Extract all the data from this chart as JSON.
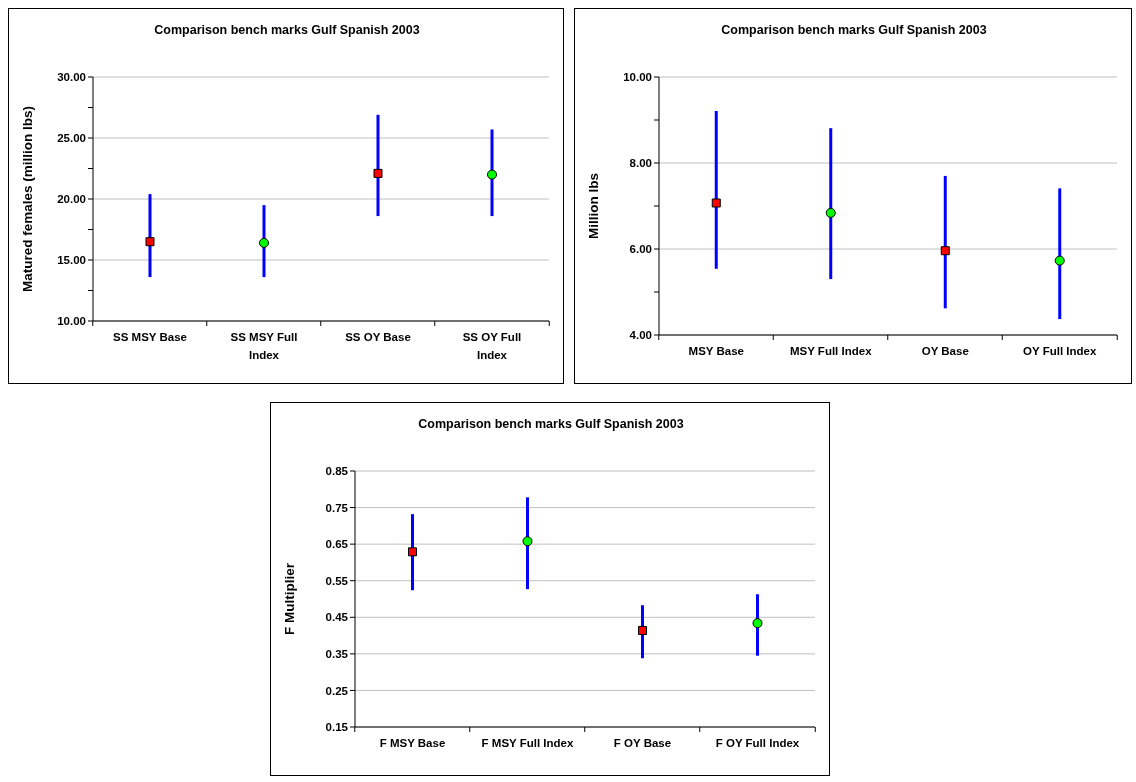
{
  "chart_data": [
    {
      "type": "scatter",
      "title": "Comparison bench marks Gulf Spanish 2003",
      "ylabel": "Matured females (million lbs)",
      "categories": [
        "SS MSY Base",
        "SS MSY Full Index",
        "SS OY Base",
        "SS OY Full Index"
      ],
      "ylim": [
        10,
        30
      ],
      "yticks": [
        {
          "value": 10,
          "label": "10.00"
        },
        {
          "value": 12.5,
          "label": null
        },
        {
          "value": 15,
          "label": "15.00"
        },
        {
          "value": 17.5,
          "label": null
        },
        {
          "value": 20,
          "label": "20.00"
        },
        {
          "value": 22.5,
          "label": null
        },
        {
          "value": 25,
          "label": "25.00"
        },
        {
          "value": 27.5,
          "label": null
        },
        {
          "value": 30,
          "label": "30.00"
        }
      ],
      "grid": "y",
      "series": [
        {
          "color": "#ff0000",
          "marker": "square",
          "values": [
            16.5,
            null,
            22.1,
            null
          ],
          "errors": [
            [
              13.6,
              20.4
            ],
            null,
            [
              18.6,
              26.9
            ],
            null
          ]
        },
        {
          "color": "#00ff00",
          "marker": "circle",
          "values": [
            null,
            16.4,
            null,
            22.0
          ],
          "errors": [
            null,
            [
              13.6,
              19.5
            ],
            null,
            [
              18.6,
              25.7
            ]
          ]
        }
      ]
    },
    {
      "type": "scatter",
      "title": "Comparison bench marks Gulf Spanish 2003",
      "ylabel": "Million lbs",
      "categories": [
        "MSY Base",
        "MSY Full Index",
        "OY Base",
        "OY Full Index"
      ],
      "ylim": [
        4,
        10
      ],
      "yticks": [
        {
          "value": 4,
          "label": "4.00"
        },
        {
          "value": 5,
          "label": null
        },
        {
          "value": 6,
          "label": "6.00"
        },
        {
          "value": 7,
          "label": null
        },
        {
          "value": 8,
          "label": "8.00"
        },
        {
          "value": 9,
          "label": null
        },
        {
          "value": 10,
          "label": "10.00"
        }
      ],
      "grid": "y",
      "series": [
        {
          "color": "#ff0000",
          "marker": "square",
          "values": [
            7.07,
            null,
            5.96,
            null
          ],
          "errors": [
            [
              5.54,
              9.21
            ],
            null,
            [
              4.62,
              7.7
            ],
            null
          ]
        },
        {
          "color": "#00ff00",
          "marker": "circle",
          "values": [
            null,
            6.84,
            null,
            5.73
          ],
          "errors": [
            null,
            [
              5.3,
              8.81
            ],
            null,
            [
              4.37,
              7.41
            ]
          ]
        }
      ]
    },
    {
      "type": "scatter",
      "title": "Comparison bench marks Gulf Spanish 2003",
      "ylabel": "F Multiplier",
      "categories": [
        "F MSY Base",
        "F MSY Full Index",
        "F OY Base",
        "F OY Full Index"
      ],
      "ylim": [
        0.15,
        0.85
      ],
      "yticks": [
        0.15,
        0.25,
        0.35,
        0.45,
        0.55,
        0.65,
        0.75,
        0.85
      ],
      "grid": "y",
      "series": [
        {
          "color": "#ff0000",
          "marker": "square",
          "values": [
            0.629,
            null,
            0.414,
            null
          ],
          "errors": [
            [
              0.524,
              0.732
            ],
            null,
            [
              0.338,
              0.483
            ],
            null
          ]
        },
        {
          "color": "#00ff00",
          "marker": "circle",
          "values": [
            null,
            0.658,
            null,
            0.434
          ],
          "errors": [
            null,
            [
              0.527,
              0.778
            ],
            null,
            [
              0.345,
              0.513
            ]
          ]
        }
      ]
    }
  ]
}
